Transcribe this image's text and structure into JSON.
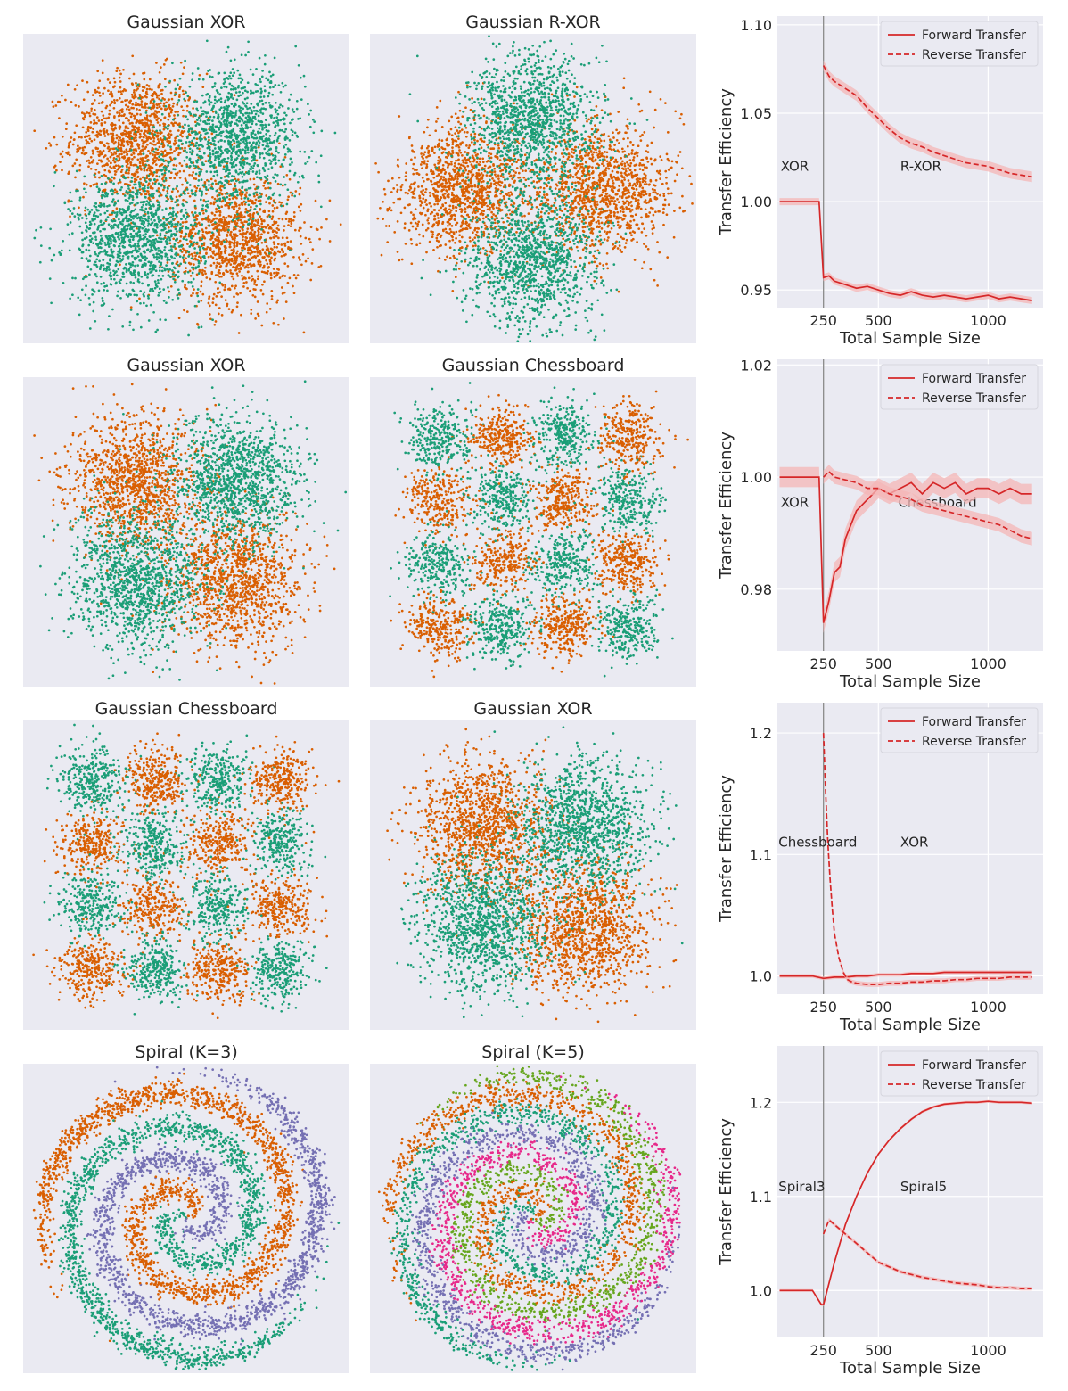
{
  "colors": {
    "panel_bg": "#eaeaf2",
    "grid": "#ffffff",
    "class_0": "#d95f02",
    "class_1": "#1b9e77",
    "class_2": "#7570b3",
    "class_3": "#e7298a",
    "class_4": "#66a61e",
    "line": "#d62728",
    "band": "#f4b6b6",
    "vline": "#7f7f7f",
    "text": "#262626"
  },
  "chart_data": [
    {
      "type": "scatter",
      "title": "Gaussian XOR",
      "pattern": "xor",
      "classes": 2,
      "grid": false
    },
    {
      "type": "scatter",
      "title": "Gaussian R-XOR",
      "pattern": "rxor",
      "classes": 2,
      "grid": false
    },
    {
      "type": "line",
      "xlabel": "Total Sample Size",
      "ylabel": "Transfer Efficiency",
      "xlim": [
        40,
        1250
      ],
      "ylim": [
        0.94,
        1.105
      ],
      "xticks": [
        250,
        500,
        1000
      ],
      "xtick_labels": [
        "250",
        "500",
        "1000"
      ],
      "yticks": [
        0.95,
        1.0,
        1.05,
        1.1
      ],
      "ytick_labels": [
        "0.95",
        "1.00",
        "1.05",
        "1.10"
      ],
      "vline": 250,
      "grid": true,
      "legend": "top-right",
      "task_labels": [
        {
          "text": "XOR",
          "x": 55,
          "y": 1.02
        },
        {
          "text": "R-XOR",
          "x": 600,
          "y": 1.02
        }
      ],
      "series": [
        {
          "name": "Forward Transfer",
          "style": "solid",
          "band": 0.002,
          "x": [
            50,
            100,
            150,
            200,
            230,
            250,
            275,
            300,
            350,
            400,
            450,
            500,
            550,
            600,
            650,
            700,
            750,
            800,
            850,
            900,
            950,
            1000,
            1050,
            1100,
            1150,
            1200
          ],
          "y": [
            1.0,
            1.0,
            1.0,
            1.0,
            1.0,
            0.957,
            0.958,
            0.955,
            0.953,
            0.951,
            0.952,
            0.95,
            0.948,
            0.947,
            0.949,
            0.947,
            0.946,
            0.947,
            0.946,
            0.945,
            0.946,
            0.947,
            0.945,
            0.946,
            0.945,
            0.944
          ]
        },
        {
          "name": "Reverse Transfer",
          "style": "dashed",
          "band": 0.003,
          "x": [
            250,
            275,
            300,
            350,
            400,
            450,
            500,
            550,
            600,
            650,
            700,
            750,
            800,
            850,
            900,
            950,
            1000,
            1050,
            1100,
            1150,
            1200
          ],
          "y": [
            1.077,
            1.071,
            1.068,
            1.064,
            1.06,
            1.053,
            1.047,
            1.041,
            1.036,
            1.033,
            1.031,
            1.028,
            1.026,
            1.024,
            1.022,
            1.021,
            1.02,
            1.018,
            1.016,
            1.015,
            1.014
          ]
        }
      ]
    },
    {
      "type": "scatter",
      "title": "Gaussian XOR",
      "pattern": "xor",
      "classes": 2,
      "grid": false
    },
    {
      "type": "scatter",
      "title": "Gaussian Chessboard",
      "pattern": "chess",
      "classes": 2,
      "grid": false
    },
    {
      "type": "line",
      "xlabel": "Total Sample Size",
      "ylabel": "Transfer Efficiency",
      "xlim": [
        40,
        1250
      ],
      "ylim": [
        0.969,
        1.021
      ],
      "xticks": [
        250,
        500,
        1000
      ],
      "xtick_labels": [
        "250",
        "500",
        "1000"
      ],
      "yticks": [
        0.98,
        1.0,
        1.02
      ],
      "ytick_labels": [
        "0.98",
        "1.00",
        "1.02"
      ],
      "vline": 250,
      "grid": true,
      "legend": "top-right",
      "task_labels": [
        {
          "text": "XOR",
          "x": 55,
          "y": 0.9955
        },
        {
          "text": "Chessboard",
          "x": 590,
          "y": 0.9955
        }
      ],
      "series": [
        {
          "name": "Forward Transfer",
          "style": "solid",
          "band": 0.0018,
          "x": [
            50,
            100,
            150,
            200,
            230,
            250,
            275,
            300,
            325,
            350,
            400,
            450,
            500,
            550,
            600,
            650,
            700,
            750,
            800,
            850,
            900,
            950,
            1000,
            1050,
            1100,
            1150,
            1200
          ],
          "y": [
            1.0,
            1.0,
            1.0,
            1.0,
            1.0,
            0.974,
            0.978,
            0.983,
            0.984,
            0.989,
            0.994,
            0.996,
            0.998,
            0.997,
            0.998,
            0.999,
            0.997,
            0.999,
            0.998,
            0.999,
            0.997,
            0.998,
            0.998,
            0.997,
            0.998,
            0.997,
            0.997
          ]
        },
        {
          "name": "Reverse Transfer",
          "style": "dashed",
          "band": 0.0012,
          "x": [
            250,
            275,
            300,
            350,
            400,
            450,
            500,
            550,
            600,
            650,
            700,
            750,
            800,
            850,
            900,
            950,
            1000,
            1050,
            1100,
            1150,
            1200
          ],
          "y": [
            1.0,
            1.001,
            1.0,
            0.9995,
            0.999,
            0.998,
            0.998,
            0.997,
            0.9965,
            0.996,
            0.995,
            0.9945,
            0.994,
            0.9935,
            0.993,
            0.9925,
            0.992,
            0.9915,
            0.9905,
            0.9895,
            0.989
          ]
        }
      ]
    },
    {
      "type": "scatter",
      "title": "Gaussian Chessboard",
      "pattern": "chess",
      "classes": 2,
      "grid": false
    },
    {
      "type": "scatter",
      "title": "Gaussian XOR",
      "pattern": "xor",
      "classes": 2,
      "grid": false
    },
    {
      "type": "line",
      "xlabel": "Total Sample Size",
      "ylabel": "Transfer Efficiency",
      "xlim": [
        40,
        1250
      ],
      "ylim": [
        0.985,
        1.225
      ],
      "xticks": [
        250,
        500,
        1000
      ],
      "xtick_labels": [
        "250",
        "500",
        "1000"
      ],
      "yticks": [
        1.0,
        1.1,
        1.2
      ],
      "ytick_labels": [
        "1.0",
        "1.1",
        "1.2"
      ],
      "vline": 250,
      "grid": true,
      "legend": "top-right",
      "task_labels": [
        {
          "text": "Chessboard",
          "x": 45,
          "y": 1.11
        },
        {
          "text": "XOR",
          "x": 600,
          "y": 1.11
        }
      ],
      "series": [
        {
          "name": "Forward Transfer",
          "style": "solid",
          "band": 0.0015,
          "x": [
            50,
            100,
            150,
            200,
            250,
            300,
            350,
            400,
            450,
            500,
            550,
            600,
            650,
            700,
            750,
            800,
            850,
            900,
            950,
            1000,
            1050,
            1100,
            1150,
            1200
          ],
          "y": [
            1.0,
            1.0,
            1.0,
            1.0,
            0.998,
            0.999,
            0.999,
            1.0,
            1.0,
            1.001,
            1.001,
            1.001,
            1.002,
            1.002,
            1.002,
            1.003,
            1.003,
            1.003,
            1.003,
            1.003,
            1.003,
            1.003,
            1.003,
            1.003
          ]
        },
        {
          "name": "Reverse Transfer",
          "style": "dashed",
          "band": 0.002,
          "x": [
            250,
            260,
            270,
            280,
            290,
            300,
            320,
            340,
            360,
            380,
            400,
            450,
            500,
            550,
            600,
            650,
            700,
            750,
            800,
            850,
            900,
            950,
            1000,
            1050,
            1100,
            1150,
            1200
          ],
          "y": [
            1.2,
            1.15,
            1.11,
            1.08,
            1.055,
            1.035,
            1.015,
            1.003,
            0.997,
            0.995,
            0.994,
            0.993,
            0.993,
            0.994,
            0.994,
            0.995,
            0.995,
            0.996,
            0.996,
            0.997,
            0.997,
            0.998,
            0.998,
            0.998,
            0.999,
            0.999,
            0.999
          ]
        }
      ]
    },
    {
      "type": "scatter",
      "title": "Spiral (K=3)",
      "pattern": "spiral",
      "classes": 3,
      "grid": false
    },
    {
      "type": "scatter",
      "title": "Spiral (K=5)",
      "pattern": "spiral",
      "classes": 5,
      "grid": false
    },
    {
      "type": "line",
      "xlabel": "Total Sample Size",
      "ylabel": "Transfer Efficiency",
      "xlim": [
        40,
        1250
      ],
      "ylim": [
        0.95,
        1.26
      ],
      "xticks": [
        250,
        500,
        1000
      ],
      "xtick_labels": [
        "250",
        "500",
        "1000"
      ],
      "yticks": [
        1.0,
        1.1,
        1.2
      ],
      "ytick_labels": [
        "1.0",
        "1.1",
        "1.2"
      ],
      "vline": 250,
      "grid": true,
      "legend": "top-right",
      "task_labels": [
        {
          "text": "Spiral3",
          "x": 45,
          "y": 1.11
        },
        {
          "text": "Spiral5",
          "x": 600,
          "y": 1.11
        }
      ],
      "series": [
        {
          "name": "Forward Transfer",
          "style": "solid",
          "band": 0.0015,
          "x": [
            50,
            100,
            150,
            200,
            240,
            250,
            300,
            350,
            400,
            450,
            500,
            550,
            600,
            650,
            700,
            750,
            800,
            850,
            900,
            950,
            1000,
            1050,
            1100,
            1150,
            1200
          ],
          "y": [
            1.0,
            1.0,
            1.0,
            1.0,
            0.985,
            0.985,
            1.03,
            1.07,
            1.1,
            1.125,
            1.145,
            1.16,
            1.172,
            1.182,
            1.19,
            1.195,
            1.198,
            1.199,
            1.2,
            1.2,
            1.201,
            1.2,
            1.2,
            1.2,
            1.199
          ]
        },
        {
          "name": "Reverse Transfer",
          "style": "dashed",
          "band": 0.002,
          "x": [
            250,
            275,
            300,
            350,
            400,
            450,
            500,
            550,
            600,
            650,
            700,
            750,
            800,
            850,
            900,
            950,
            1000,
            1050,
            1100,
            1150,
            1200
          ],
          "y": [
            1.06,
            1.075,
            1.07,
            1.06,
            1.05,
            1.04,
            1.03,
            1.025,
            1.02,
            1.017,
            1.014,
            1.012,
            1.01,
            1.008,
            1.007,
            1.006,
            1.004,
            1.003,
            1.003,
            1.002,
            1.002
          ]
        }
      ]
    }
  ]
}
